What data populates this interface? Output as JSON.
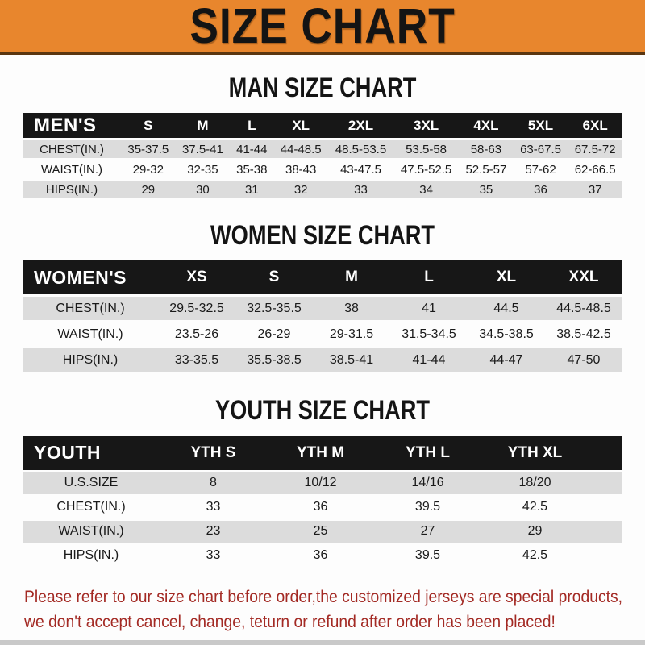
{
  "banner": {
    "title": "SIZE CHART"
  },
  "sections": {
    "man": {
      "title": "MAN SIZE CHART"
    },
    "women": {
      "title": "WOMEN SIZE CHART"
    },
    "youth": {
      "title": "YOUTH SIZE CHART"
    }
  },
  "tables": {
    "men": {
      "label": "MEN'S",
      "sizes": [
        "S",
        "M",
        "L",
        "XL",
        "2XL",
        "3XL",
        "4XL",
        "5XL",
        "6XL"
      ],
      "rows": [
        {
          "label": "CHEST(IN.)",
          "values": [
            "35-37.5",
            "37.5-41",
            "41-44",
            "44-48.5",
            "48.5-53.5",
            "53.5-58",
            "58-63",
            "63-67.5",
            "67.5-72"
          ]
        },
        {
          "label": "WAIST(IN.)",
          "values": [
            "29-32",
            "32-35",
            "35-38",
            "38-43",
            "43-47.5",
            "47.5-52.5",
            "52.5-57",
            "57-62",
            "62-66.5"
          ]
        },
        {
          "label": "HIPS(IN.)",
          "values": [
            "29",
            "30",
            "31",
            "32",
            "33",
            "34",
            "35",
            "36",
            "37"
          ]
        }
      ]
    },
    "women": {
      "label": "WOMEN'S",
      "sizes": [
        "XS",
        "S",
        "M",
        "L",
        "XL",
        "XXL"
      ],
      "rows": [
        {
          "label": "CHEST(IN.)",
          "values": [
            "29.5-32.5",
            "32.5-35.5",
            "38",
            "41",
            "44.5",
            "44.5-48.5"
          ]
        },
        {
          "label": "WAIST(IN.)",
          "values": [
            "23.5-26",
            "26-29",
            "29-31.5",
            "31.5-34.5",
            "34.5-38.5",
            "38.5-42.5"
          ]
        },
        {
          "label": "HIPS(IN.)",
          "values": [
            "33-35.5",
            "35.5-38.5",
            "38.5-41",
            "41-44",
            "44-47",
            "47-50"
          ]
        }
      ]
    },
    "youth": {
      "label": "YOUTH",
      "sizes": [
        "YTH S",
        "YTH M",
        "YTH L",
        "YTH XL"
      ],
      "has_filler": true,
      "rows": [
        {
          "label": "U.S.SIZE",
          "values": [
            "8",
            "10/12",
            "14/16",
            "18/20"
          ]
        },
        {
          "label": "CHEST(IN.)",
          "values": [
            "33",
            "36",
            "39.5",
            "42.5"
          ]
        },
        {
          "label": "WAIST(IN.)",
          "values": [
            "23",
            "25",
            "27",
            "29"
          ]
        },
        {
          "label": "HIPS(IN.)",
          "values": [
            "33",
            "36",
            "39.5",
            "42.5"
          ]
        }
      ]
    }
  },
  "footer": {
    "line1": "Please refer to our size chart before order,the customized jerseys are special products,",
    "line2": "we don't accept cancel, change, teturn or refund after order has been placed!"
  },
  "colors": {
    "banner_orange": "#e8862d",
    "table_header_black": "#171717",
    "row_gray": "#dcdcdc",
    "footer_red": "#a32a24"
  }
}
